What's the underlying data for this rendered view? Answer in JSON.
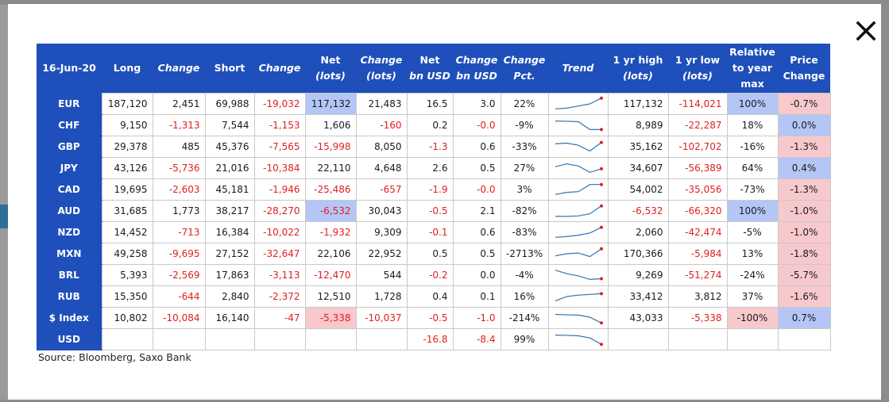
{
  "header": {
    "date": "16-Jun-20",
    "long": "Long",
    "change": "Change",
    "short": "Short",
    "change2": "Change",
    "net": "Net",
    "lots": "(lots)",
    "change3": "Change",
    "lots2": "(lots)",
    "net_usd": "Net",
    "bn_usd": "bn USD",
    "change_usd": "Change",
    "bn_usd2": "bn USD",
    "change_pct": "Change",
    "pct": "Pct.",
    "trend": "Trend",
    "yr_high": "1 yr high",
    "lots3": "(lots)",
    "yr_low": "1 yr low",
    "lots4": "(lots)",
    "relative1": "Relative",
    "relative2": "to year",
    "relative3": "max",
    "price1": "Price",
    "price2": "Change"
  },
  "rows": [
    {
      "label": "EUR",
      "long": "187,120",
      "chg": "2,451",
      "short": "69,988",
      "chg2": "-19,032",
      "net": "117,132",
      "chg3": "21,483",
      "netusd": "16.5",
      "chgusd": "3.0",
      "pct": "22%",
      "high": "117,132",
      "low": "-114,021",
      "rel": "100%",
      "price": "-0.7%",
      "trend": [
        0.15,
        0.2,
        0.35,
        0.5,
        0.9
      ]
    },
    {
      "label": "CHF",
      "long": "9,150",
      "chg": "-1,313",
      "short": "7,544",
      "chg2": "-1,153",
      "net": "1,606",
      "chg3": "-160",
      "netusd": "0.2",
      "chgusd": "-0.0",
      "pct": "-9%",
      "high": "8,989",
      "low": "-22,287",
      "rel": "18%",
      "price": "0.0%",
      "trend": [
        0.8,
        0.78,
        0.75,
        0.2,
        0.2
      ]
    },
    {
      "label": "GBP",
      "long": "29,378",
      "chg": "485",
      "short": "45,376",
      "chg2": "-7,565",
      "net": "-15,998",
      "chg3": "8,050",
      "netusd": "-1.3",
      "chgusd": "0.6",
      "pct": "-33%",
      "high": "35,162",
      "low": "-102,702",
      "rel": "-16%",
      "price": "-1.3%",
      "trend": [
        0.7,
        0.75,
        0.6,
        0.2,
        0.8
      ]
    },
    {
      "label": "JPY",
      "long": "43,126",
      "chg": "-5,736",
      "short": "21,016",
      "chg2": "-10,384",
      "net": "22,110",
      "chg3": "4,648",
      "netusd": "2.6",
      "chgusd": "0.5",
      "pct": "27%",
      "high": "34,607",
      "low": "-56,389",
      "rel": "64%",
      "price": "0.4%",
      "trend": [
        0.6,
        0.8,
        0.65,
        0.2,
        0.45
      ]
    },
    {
      "label": "CAD",
      "long": "19,695",
      "chg": "-2,603",
      "short": "45,181",
      "chg2": "-1,946",
      "net": "-25,486",
      "chg3": "-657",
      "netusd": "-1.9",
      "chgusd": "-0.0",
      "pct": "3%",
      "high": "54,002",
      "low": "-35,056",
      "rel": "-73%",
      "price": "-1.3%",
      "trend": [
        0.15,
        0.3,
        0.35,
        0.85,
        0.85
      ]
    },
    {
      "label": "AUD",
      "long": "31,685",
      "chg": "1,773",
      "short": "38,217",
      "chg2": "-28,270",
      "net": "-6,532",
      "chg3": "30,043",
      "netusd": "-0.5",
      "chgusd": "2.1",
      "pct": "-82%",
      "high": "-6,532",
      "low": "-66,320",
      "rel": "100%",
      "price": "-1.0%",
      "trend": [
        0.12,
        0.12,
        0.15,
        0.3,
        0.85
      ]
    },
    {
      "label": "NZD",
      "long": "14,452",
      "chg": "-713",
      "short": "16,384",
      "chg2": "-10,022",
      "net": "-1,932",
      "chg3": "9,309",
      "netusd": "-0.1",
      "chgusd": "0.6",
      "pct": "-83%",
      "high": "2,060",
      "low": "-42,474",
      "rel": "-5%",
      "price": "-1.0%",
      "trend": [
        0.15,
        0.2,
        0.3,
        0.45,
        0.85
      ]
    },
    {
      "label": "MXN",
      "long": "49,258",
      "chg": "-9,695",
      "short": "27,152",
      "chg2": "-32,647",
      "net": "22,106",
      "chg3": "22,952",
      "netusd": "0.5",
      "chgusd": "0.5",
      "pct": "-2713%",
      "high": "170,366",
      "low": "-5,984",
      "rel": "13%",
      "price": "-1.8%",
      "trend": [
        0.35,
        0.5,
        0.55,
        0.3,
        0.85
      ]
    },
    {
      "label": "BRL",
      "long": "5,393",
      "chg": "-2,569",
      "short": "17,863",
      "chg2": "-3,113",
      "net": "-12,470",
      "chg3": "544",
      "netusd": "-0.2",
      "chgusd": "0.0",
      "pct": "-4%",
      "high": "9,269",
      "low": "-51,274",
      "rel": "-24%",
      "price": "-5.7%",
      "trend": [
        0.85,
        0.6,
        0.45,
        0.2,
        0.25
      ]
    },
    {
      "label": "RUB",
      "long": "15,350",
      "chg": "-644",
      "short": "2,840",
      "chg2": "-2,372",
      "net": "12,510",
      "chg3": "1,728",
      "netusd": "0.4",
      "chgusd": "0.1",
      "pct": "16%",
      "high": "33,412",
      "low": "3,812",
      "rel": "37%",
      "price": "-1.6%",
      "trend": [
        0.2,
        0.5,
        0.6,
        0.65,
        0.7
      ]
    },
    {
      "label": "$ Index",
      "long": "10,802",
      "chg": "-10,084",
      "short": "16,140",
      "chg2": "-47",
      "net": "-5,338",
      "chg3": "-10,037",
      "netusd": "-0.5",
      "chgusd": "-1.0",
      "pct": "-214%",
      "high": "43,033",
      "low": "-5,338",
      "rel": "-100%",
      "price": "0.7%",
      "trend": [
        0.75,
        0.72,
        0.7,
        0.55,
        0.15
      ]
    },
    {
      "label": "USD",
      "long": "",
      "chg": "",
      "short": "",
      "chg2": "",
      "net": "",
      "chg3": "",
      "netusd": "-16.8",
      "chgusd": "-8.4",
      "pct": "99%",
      "high": "",
      "low": "",
      "rel": "",
      "price": "",
      "trend": [
        0.8,
        0.78,
        0.75,
        0.6,
        0.15
      ]
    }
  ],
  "source": "Source: Bloomberg, Saxo Bank",
  "colors": {
    "header": "#1f4fba",
    "negative": "#e02020",
    "highlight_blue": "#b4c6f5",
    "highlight_red": "#f7c9cc",
    "trend_line": "#2e75b6",
    "trend_end": "#e02020"
  }
}
